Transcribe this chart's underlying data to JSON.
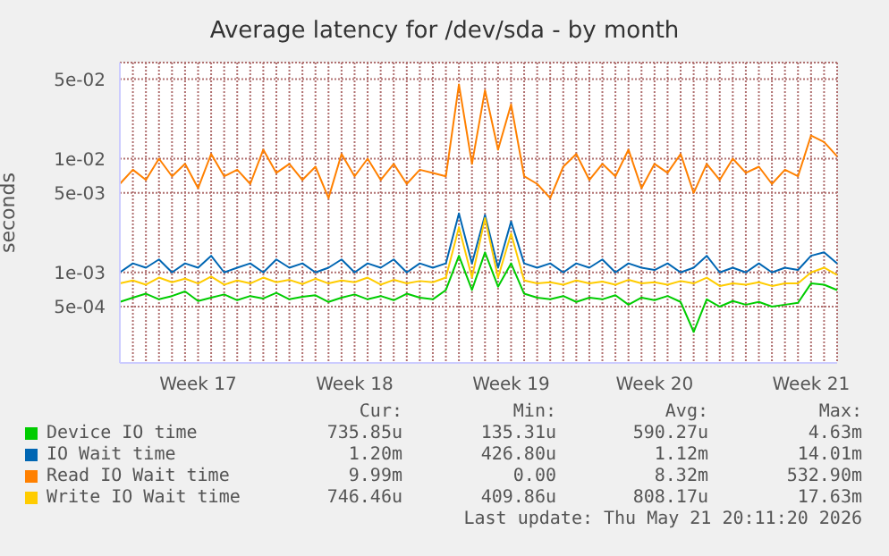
{
  "chart_data": {
    "type": "line",
    "title": "Average latency for /dev/sda - by month",
    "ylabel": "seconds",
    "log": "y",
    "grid": true,
    "legend": "bottom",
    "marker": "none",
    "line_style": "solid",
    "ylim": [
      0.00016,
      0.07
    ],
    "yticks": [
      {
        "value": 0.0005,
        "label": "5e-04"
      },
      {
        "value": 0.001,
        "label": "1e-03"
      },
      {
        "value": 0.005,
        "label": "5e-03"
      },
      {
        "value": 0.01,
        "label": "1e-02"
      },
      {
        "value": 0.05,
        "label": "5e-02"
      }
    ],
    "categories": [
      null,
      null,
      null,
      null,
      null,
      null,
      "Week 17",
      null,
      null,
      null,
      null,
      null,
      null,
      null,
      null,
      null,
      null,
      null,
      "Week 18",
      null,
      null,
      null,
      null,
      null,
      null,
      null,
      null,
      null,
      null,
      null,
      "Week 19",
      null,
      null,
      null,
      null,
      null,
      null,
      null,
      null,
      null,
      null,
      "Week 20",
      null,
      null,
      null,
      null,
      null,
      null,
      null,
      null,
      null,
      null,
      null,
      "Week 21",
      null,
      null
    ],
    "series": [
      {
        "name": "Device IO time",
        "color": "#00cc00",
        "values": [
          0.00055,
          0.0006,
          0.00065,
          0.00058,
          0.00062,
          0.00068,
          0.00056,
          0.0006,
          0.00064,
          0.00057,
          0.00062,
          0.00059,
          0.00066,
          0.00058,
          0.00061,
          0.00063,
          0.00055,
          0.0006,
          0.00064,
          0.00058,
          0.00062,
          0.00057,
          0.00065,
          0.0006,
          0.00058,
          0.0007,
          0.0014,
          0.0007,
          0.0015,
          0.00075,
          0.0012,
          0.00065,
          0.0006,
          0.00058,
          0.00062,
          0.00055,
          0.0006,
          0.00058,
          0.00063,
          0.00052,
          0.0006,
          0.00057,
          0.00062,
          0.00055,
          0.0003,
          0.00058,
          0.0005,
          0.00056,
          0.00052,
          0.00055,
          0.0005,
          0.00052,
          0.00054,
          0.0008,
          0.00078,
          0.0007
        ]
      },
      {
        "name": "IO Wait time",
        "color": "#0066b3",
        "values": [
          0.001,
          0.0012,
          0.0011,
          0.0013,
          0.001,
          0.0012,
          0.0011,
          0.0014,
          0.001,
          0.0011,
          0.0012,
          0.001,
          0.0013,
          0.0011,
          0.0012,
          0.001,
          0.0011,
          0.0013,
          0.001,
          0.0012,
          0.0011,
          0.0013,
          0.001,
          0.0012,
          0.0011,
          0.0012,
          0.0033,
          0.0012,
          0.0032,
          0.0011,
          0.0028,
          0.0012,
          0.0011,
          0.0012,
          0.001,
          0.0012,
          0.0011,
          0.0013,
          0.001,
          0.0012,
          0.0011,
          0.00105,
          0.0012,
          0.001,
          0.0011,
          0.0014,
          0.001,
          0.0011,
          0.001,
          0.0012,
          0.001,
          0.0011,
          0.00105,
          0.0014,
          0.0015,
          0.0012
        ]
      },
      {
        "name": "Read IO Wait time",
        "color": "#ff8000",
        "values": [
          0.006,
          0.008,
          0.0065,
          0.01,
          0.007,
          0.009,
          0.0055,
          0.011,
          0.007,
          0.008,
          0.006,
          0.012,
          0.0075,
          0.009,
          0.0065,
          0.0085,
          0.0045,
          0.011,
          0.007,
          0.01,
          0.0065,
          0.009,
          0.006,
          0.008,
          0.0075,
          0.007,
          0.045,
          0.009,
          0.04,
          0.012,
          0.03,
          0.007,
          0.006,
          0.0045,
          0.0085,
          0.011,
          0.0065,
          0.009,
          0.007,
          0.012,
          0.0055,
          0.009,
          0.0075,
          0.011,
          0.005,
          0.009,
          0.0065,
          0.01,
          0.0075,
          0.0085,
          0.006,
          0.008,
          0.007,
          0.016,
          0.014,
          0.0105
        ]
      },
      {
        "name": "Write IO Wait time",
        "color": "#ffcc00",
        "values": [
          0.0008,
          0.00085,
          0.00078,
          0.0009,
          0.00082,
          0.00088,
          0.0008,
          0.00092,
          0.00078,
          0.00085,
          0.0008,
          0.0009,
          0.00082,
          0.00086,
          0.00079,
          0.00088,
          0.0008,
          0.00085,
          0.00082,
          0.0009,
          0.00078,
          0.00086,
          0.0008,
          0.00084,
          0.00082,
          0.0009,
          0.0025,
          0.0009,
          0.003,
          0.0009,
          0.0022,
          0.00085,
          0.0008,
          0.00082,
          0.00078,
          0.00085,
          0.0008,
          0.00083,
          0.00078,
          0.00086,
          0.0008,
          0.00082,
          0.00078,
          0.00084,
          0.0008,
          0.0009,
          0.00076,
          0.0008,
          0.00078,
          0.00082,
          0.00076,
          0.0008,
          0.0008,
          0.001,
          0.0011,
          0.00095
        ]
      }
    ],
    "annotations": [
      "Cur:",
      "Min:",
      "Avg:",
      "Max:",
      "735.85u",
      "135.31u",
      "590.27u",
      "4.63m",
      "1.20m",
      "426.80u",
      "1.12m",
      "14.01m",
      "9.99m",
      "0.00",
      "8.32m",
      "532.90m",
      "746.46u",
      "409.86u",
      "808.17u",
      "17.63m",
      "Last update: Thu May 21 20:11:20 2026"
    ]
  }
}
